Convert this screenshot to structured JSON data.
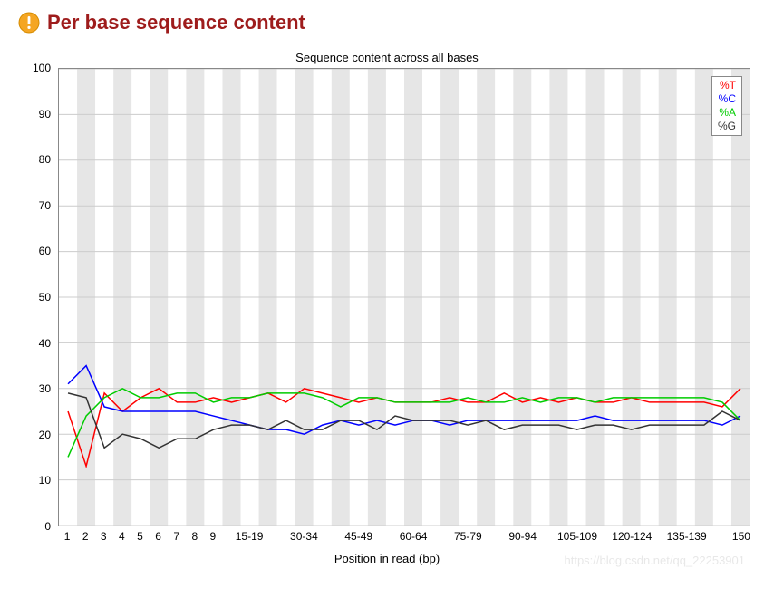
{
  "header": {
    "title": "Per base sequence content",
    "title_color": "#9e1c1c"
  },
  "chart": {
    "title": "Sequence content across all bases",
    "xlabel": "Position in read (bp)",
    "type": "line",
    "ylim": [
      0,
      100
    ],
    "yticks": [
      0,
      10,
      20,
      30,
      40,
      50,
      60,
      70,
      80,
      90,
      100
    ],
    "background_color": "#ffffff",
    "alt_band_color": "#e6e6e6",
    "grid_color": "#cccccc",
    "categories": [
      "1",
      "2",
      "3",
      "4",
      "5",
      "6",
      "7",
      "8",
      "9",
      "10-14",
      "15-19",
      "20-24",
      "25-29",
      "30-34",
      "35-39",
      "40-44",
      "45-49",
      "50-54",
      "55-59",
      "60-64",
      "65-69",
      "70-74",
      "75-79",
      "80-84",
      "85-89",
      "90-94",
      "95-99",
      "100-104",
      "105-109",
      "110-114",
      "115-119",
      "120-124",
      "125-129",
      "130-134",
      "135-139",
      "140-144",
      "145-149",
      "150"
    ],
    "x_tick_labels": [
      "1",
      "2",
      "3",
      "4",
      "5",
      "6",
      "7",
      "8",
      "9",
      "",
      "15-19",
      "",
      "",
      "30-34",
      "",
      "",
      "45-49",
      "",
      "",
      "60-64",
      "",
      "",
      "75-79",
      "",
      "",
      "90-94",
      "",
      "",
      "105-109",
      "",
      "",
      "120-124",
      "",
      "",
      "135-139",
      "",
      "",
      "150"
    ],
    "legend": {
      "position": "top-right",
      "items": [
        {
          "label": "%T",
          "color": "#ff0000"
        },
        {
          "label": "%C",
          "color": "#0000ff"
        },
        {
          "label": "%A",
          "color": "#00cc00"
        },
        {
          "label": "%G",
          "color": "#333333"
        }
      ]
    },
    "series": {
      "T": {
        "color": "#ff0000",
        "width": 1.5,
        "values": [
          25,
          13,
          29,
          25,
          28,
          30,
          27,
          27,
          28,
          27,
          28,
          29,
          27,
          30,
          29,
          28,
          27,
          28,
          27,
          27,
          27,
          28,
          27,
          27,
          29,
          27,
          28,
          27,
          28,
          27,
          27,
          28,
          27,
          27,
          27,
          27,
          26,
          30
        ]
      },
      "C": {
        "color": "#0000ff",
        "width": 1.5,
        "values": [
          31,
          35,
          26,
          25,
          25,
          25,
          25,
          25,
          24,
          23,
          22,
          21,
          21,
          20,
          22,
          23,
          22,
          23,
          22,
          23,
          23,
          22,
          23,
          23,
          23,
          23,
          23,
          23,
          23,
          24,
          23,
          23,
          23,
          23,
          23,
          23,
          22,
          24
        ]
      },
      "A": {
        "color": "#00cc00",
        "width": 1.5,
        "values": [
          15,
          24,
          28,
          30,
          28,
          28,
          29,
          29,
          27,
          28,
          28,
          29,
          29,
          29,
          28,
          26,
          28,
          28,
          27,
          27,
          27,
          27,
          28,
          27,
          27,
          28,
          27,
          28,
          28,
          27,
          28,
          28,
          28,
          28,
          28,
          28,
          27,
          23
        ]
      },
      "G": {
        "color": "#333333",
        "width": 1.5,
        "values": [
          29,
          28,
          17,
          20,
          19,
          17,
          19,
          19,
          21,
          22,
          22,
          21,
          23,
          21,
          21,
          23,
          23,
          21,
          24,
          23,
          23,
          23,
          22,
          23,
          21,
          22,
          22,
          22,
          21,
          22,
          22,
          21,
          22,
          22,
          22,
          22,
          25,
          23
        ]
      }
    }
  },
  "watermark": "https://blog.csdn.net/qq_22253901"
}
